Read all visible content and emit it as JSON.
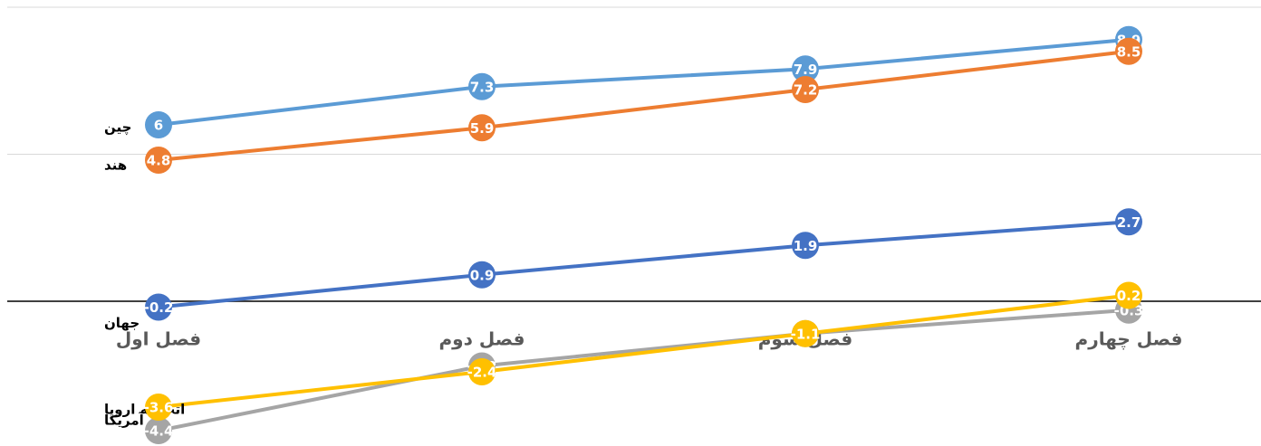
{
  "chart_data": {
    "type": "line",
    "categories": [
      "فصل اول",
      "فصل دوم",
      "فصل سوم",
      "فصل چهارم"
    ],
    "series": [
      {
        "name": "چین",
        "color": "#5B9BD5",
        "values": [
          6,
          7.3,
          7.9,
          8.9
        ]
      },
      {
        "name": "هند",
        "color": "#ED7D31",
        "values": [
          4.8,
          5.9,
          7.2,
          8.5
        ]
      },
      {
        "name": "جهان",
        "color": "#4472C4",
        "values": [
          -0.2,
          0.9,
          1.9,
          2.7
        ]
      },
      {
        "name": "آمریکا",
        "color": "#A5A5A5",
        "values": [
          -4.4,
          -2.2,
          -1.1,
          -0.3
        ]
      },
      {
        "name": "اتحادیه اروپا",
        "color": "#FFC000",
        "values": [
          -3.6,
          -2.4,
          -1.1,
          0.2
        ]
      }
    ],
    "ylim": [
      -4.8,
      10
    ],
    "yticks": [
      0,
      5,
      10
    ],
    "grid": true
  }
}
